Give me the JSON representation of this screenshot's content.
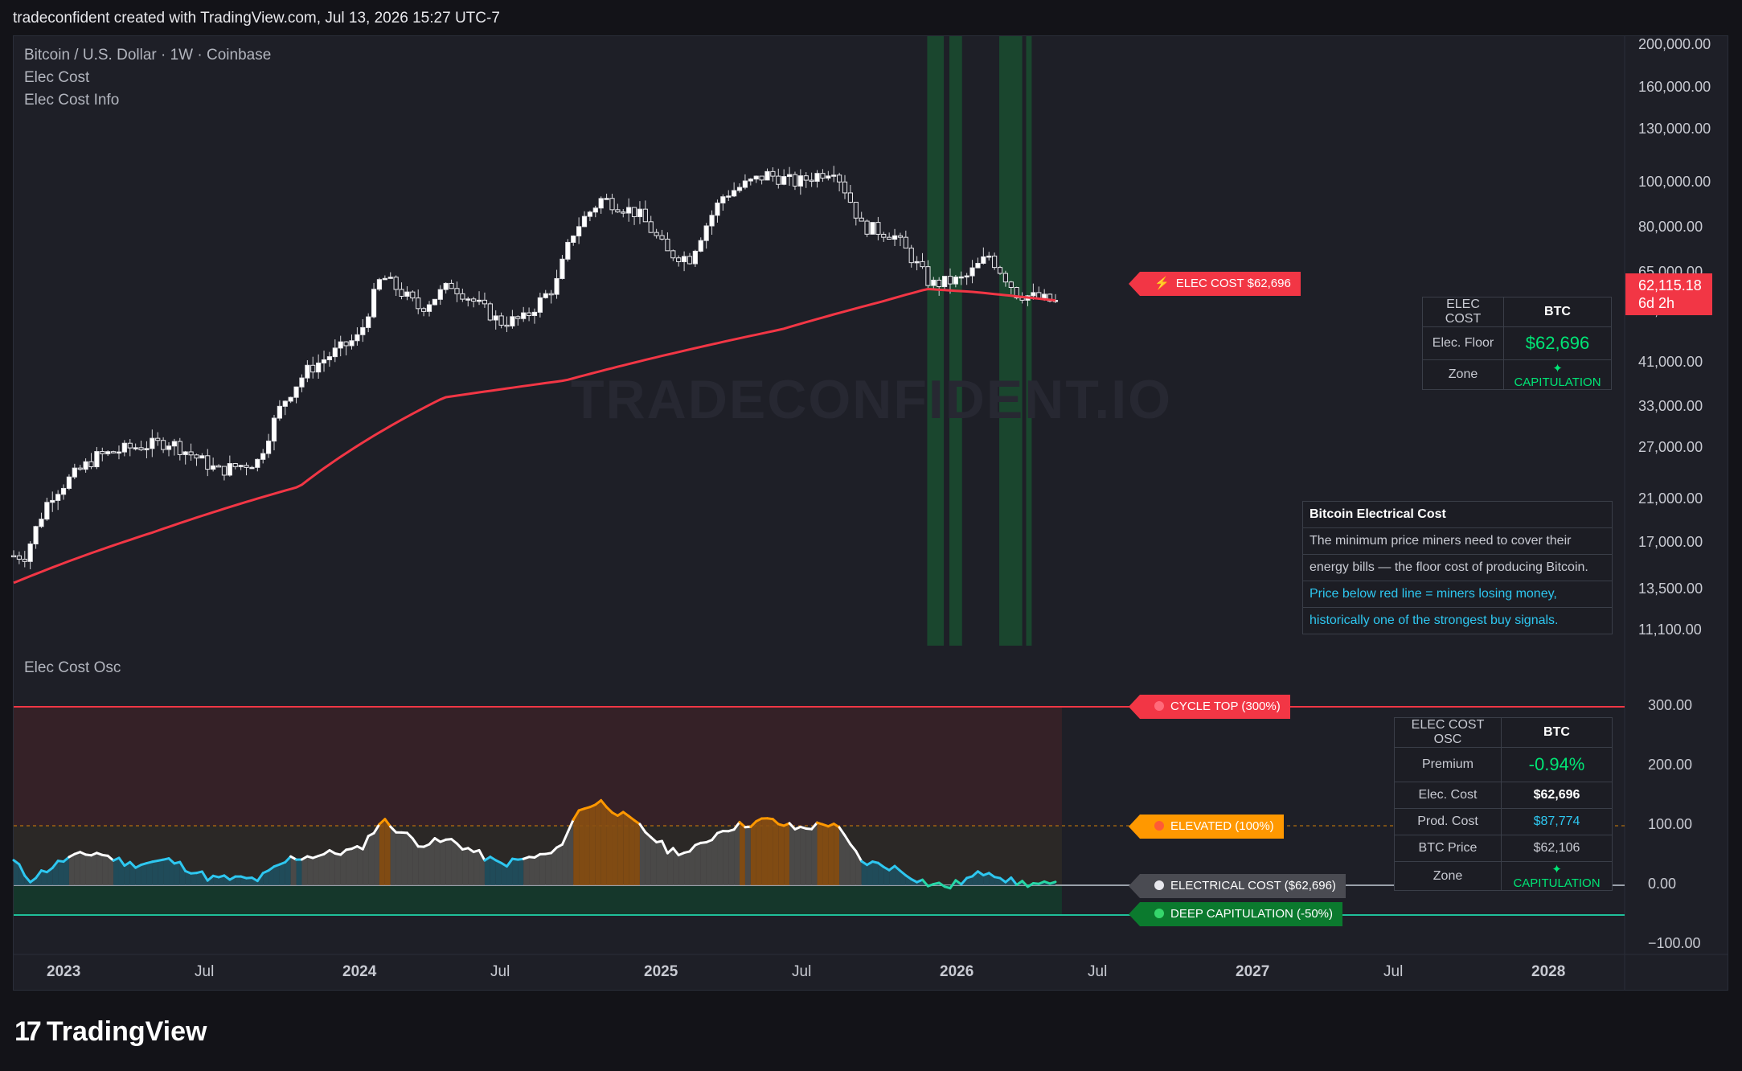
{
  "header": {
    "text": "tradeconfident created with TradingView.com, Jul 13, 2026 15:27 UTC-7"
  },
  "legend": {
    "symbol": "Bitcoin / U.S. Dollar · 1W · Coinbase",
    "indicator1": "Elec Cost",
    "indicator2": "Elec Cost Info",
    "osc_title": "Elec Cost Osc"
  },
  "watermark": "TRADECONFIDENT.IO",
  "price_axis": [
    "200,000.00",
    "160,000.00",
    "130,000.00",
    "100,000.00",
    "80,000.00",
    "65,000.00",
    "53,000.00",
    "41,000.00",
    "33,000.00",
    "27,000.00",
    "21,000.00",
    "17,000.00",
    "13,500.00",
    "11,100.00"
  ],
  "osc_axis": [
    "300.00",
    "200.00",
    "100.00",
    "0.00",
    "−100.00"
  ],
  "time_axis": [
    {
      "label": "2023",
      "bold": true
    },
    {
      "label": "Jul",
      "bold": false
    },
    {
      "label": "2024",
      "bold": true
    },
    {
      "label": "Jul",
      "bold": false
    },
    {
      "label": "2025",
      "bold": true
    },
    {
      "label": "Jul",
      "bold": false
    },
    {
      "label": "2026",
      "bold": true
    },
    {
      "label": "Jul",
      "bold": false
    },
    {
      "label": "2027",
      "bold": true
    },
    {
      "label": "Jul",
      "bold": false
    },
    {
      "label": "2028",
      "bold": true
    }
  ],
  "last_price": {
    "price": "62,115.18",
    "countdown": "6d 2h"
  },
  "tags": {
    "elec_cost": "ELEC COST $62,696",
    "cycle_top": "CYCLE TOP (300%)",
    "elevated": "ELEVATED (100%)",
    "electrical_cost": "ELECTRICAL COST ($62,696)",
    "deep_cap": "DEEP CAPITULATION (-50%)",
    "elec_icon": "lightning-icon"
  },
  "elec_table": {
    "head_left": "ELEC COST",
    "head_right": "BTC",
    "row1_label": "Elec. Floor",
    "row1_value": "$62,696",
    "row2_label": "Zone",
    "row2_value": "✦ CAPITULATION"
  },
  "info_table": {
    "title": "Bitcoin Electrical Cost",
    "line1": "The minimum price miners need to cover their",
    "line2": "energy bills — the floor cost of producing Bitcoin.",
    "line3": "Price below red line = miners losing money,",
    "line4": "historically one of the strongest buy signals."
  },
  "osc_table": {
    "head_left": "ELEC COST OSC",
    "head_right": "BTC",
    "rows": [
      {
        "label": "Premium",
        "value": "-0.94%"
      },
      {
        "label": "Elec. Cost",
        "value": "$62,696"
      },
      {
        "label": "Prod. Cost",
        "value": "$87,774"
      },
      {
        "label": "BTC Price",
        "value": "$62,106"
      },
      {
        "label": "Zone",
        "value": "✦ CAPITULATION"
      }
    ]
  },
  "footer": {
    "brand": "TradingView"
  },
  "colors": {
    "up": "#ffffff",
    "elec_line": "#f23645",
    "osc_line": "#ffffff",
    "capitulation": "#00e676",
    "elevated": "#ff9800",
    "cyan": "#2ec7f0",
    "bg": "#1e1f27"
  },
  "chart_data": [
    {
      "type": "candlestick",
      "title": "Bitcoin / U.S. Dollar · 1W · Coinbase",
      "y_scale": "log",
      "ylim": [
        11100,
        200000
      ],
      "x_range": [
        "2022-12-05",
        "2028-07-01"
      ],
      "price_key": [
        {
          "date": "2022-12-20",
          "close": 16800
        },
        {
          "date": "2023-01-20",
          "close": 22800
        },
        {
          "date": "2023-03-20",
          "close": 28000
        },
        {
          "date": "2023-05-01",
          "close": 29300
        },
        {
          "date": "2023-06-20",
          "close": 30200
        },
        {
          "date": "2023-08-20",
          "close": 26000
        },
        {
          "date": "2023-10-10",
          "close": 27400
        },
        {
          "date": "2023-11-10",
          "close": 37000
        },
        {
          "date": "2023-12-10",
          "close": 43500
        },
        {
          "date": "2024-02-15",
          "close": 52000
        },
        {
          "date": "2024-03-14",
          "close": 71000
        },
        {
          "date": "2024-05-01",
          "close": 60000
        },
        {
          "date": "2024-06-10",
          "close": 68000
        },
        {
          "date": "2024-08-10",
          "close": 56000
        },
        {
          "date": "2024-09-10",
          "close": 57000
        },
        {
          "date": "2024-10-20",
          "close": 68000
        },
        {
          "date": "2024-11-12",
          "close": 90000
        },
        {
          "date": "2024-12-17",
          "close": 106000
        },
        {
          "date": "2025-02-01",
          "close": 98000
        },
        {
          "date": "2025-03-10",
          "close": 80000
        },
        {
          "date": "2025-04-07",
          "close": 78000
        },
        {
          "date": "2025-05-20",
          "close": 108000
        },
        {
          "date": "2025-07-14",
          "close": 120000
        },
        {
          "date": "2025-08-20",
          "close": 115000
        },
        {
          "date": "2025-10-06",
          "close": 124000
        },
        {
          "date": "2025-11-10",
          "close": 92000
        },
        {
          "date": "2025-12-20",
          "close": 88000
        },
        {
          "date": "2026-02-05",
          "close": 68000
        },
        {
          "date": "2026-03-20",
          "close": 70000
        },
        {
          "date": "2026-04-20",
          "close": 79000
        },
        {
          "date": "2026-05-25",
          "close": 65000
        },
        {
          "date": "2026-07-13",
          "close": 62115
        }
      ],
      "elec_cost_key": [
        {
          "date": "2022-12-05",
          "value": 14600
        },
        {
          "date": "2023-06-01",
          "value": 19000
        },
        {
          "date": "2023-12-01",
          "value": 24000
        },
        {
          "date": "2024-06-01",
          "value": 38000
        },
        {
          "date": "2024-11-01",
          "value": 41500
        },
        {
          "date": "2025-03-01",
          "value": 47000
        },
        {
          "date": "2025-08-01",
          "value": 54000
        },
        {
          "date": "2025-12-01",
          "value": 62000
        },
        {
          "date": "2026-02-01",
          "value": 66500
        },
        {
          "date": "2026-04-01",
          "value": 65500
        },
        {
          "date": "2026-07-13",
          "value": 62696
        }
      ],
      "capitulation_bands": [
        [
          "2026-02-01",
          "2026-02-22"
        ],
        [
          "2026-03-01",
          "2026-03-17"
        ],
        [
          "2026-05-03",
          "2026-06-01"
        ],
        [
          "2026-06-06",
          "2026-06-13"
        ]
      ]
    },
    {
      "type": "line",
      "title": "Elec Cost Osc",
      "ylim": [
        -100,
        300
      ],
      "levels": {
        "cycle_top": 300,
        "elevated": 100,
        "electrical_cost": 0,
        "deep_capitulation": -50
      },
      "osc_key": [
        {
          "date": "2022-12-05",
          "value": 40
        },
        {
          "date": "2022-12-25",
          "value": 10
        },
        {
          "date": "2023-02-10",
          "value": 45
        },
        {
          "date": "2023-03-20",
          "value": 55
        },
        {
          "date": "2023-05-01",
          "value": 35
        },
        {
          "date": "2023-06-20",
          "value": 42
        },
        {
          "date": "2023-08-10",
          "value": 12
        },
        {
          "date": "2023-10-10",
          "value": 10
        },
        {
          "date": "2023-11-20",
          "value": 45
        },
        {
          "date": "2024-02-15",
          "value": 60
        },
        {
          "date": "2024-03-14",
          "value": 110
        },
        {
          "date": "2024-05-01",
          "value": 70
        },
        {
          "date": "2024-06-10",
          "value": 75
        },
        {
          "date": "2024-08-10",
          "value": 35
        },
        {
          "date": "2024-10-20",
          "value": 55
        },
        {
          "date": "2024-11-20",
          "value": 130
        },
        {
          "date": "2024-12-17",
          "value": 140
        },
        {
          "date": "2025-02-01",
          "value": 100
        },
        {
          "date": "2025-03-10",
          "value": 60
        },
        {
          "date": "2025-04-07",
          "value": 55
        },
        {
          "date": "2025-05-20",
          "value": 95
        },
        {
          "date": "2025-07-14",
          "value": 110
        },
        {
          "date": "2025-08-20",
          "value": 95
        },
        {
          "date": "2025-10-06",
          "value": 105
        },
        {
          "date": "2025-11-10",
          "value": 40
        },
        {
          "date": "2025-12-20",
          "value": 30
        },
        {
          "date": "2026-02-01",
          "value": 3
        },
        {
          "date": "2026-03-01",
          "value": -2
        },
        {
          "date": "2026-04-20",
          "value": 25
        },
        {
          "date": "2026-05-20",
          "value": 5
        },
        {
          "date": "2026-07-13",
          "value": -1
        }
      ]
    }
  ]
}
